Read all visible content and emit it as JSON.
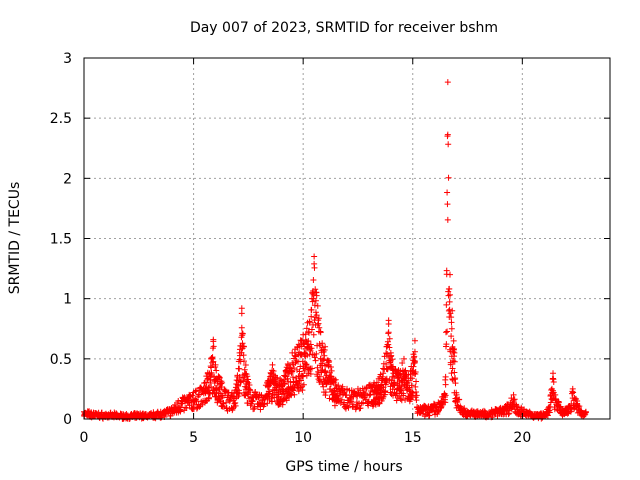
{
  "chart_data": {
    "type": "scatter",
    "title": "Day 007 of 2023, SRMTID for receiver bshm",
    "xlabel": "GPS time / hours",
    "ylabel": "SRMTID / TECUs",
    "xlim": [
      0,
      24
    ],
    "ylim": [
      0,
      3
    ],
    "xticks": [
      0,
      5,
      10,
      15,
      20
    ],
    "yticks": [
      0,
      0.5,
      1,
      1.5,
      2,
      2.5,
      3
    ],
    "xtick_labels": [
      "0",
      "5",
      "10",
      "15",
      "20"
    ],
    "ytick_labels": [
      "0",
      "0.5",
      "1",
      "1.5",
      "2",
      "2.5",
      "3"
    ],
    "grid": true,
    "marker": "+",
    "color": "#ff0000",
    "envelope": [
      [
        0.0,
        0.06
      ],
      [
        0.5,
        0.05
      ],
      [
        1.0,
        0.04
      ],
      [
        1.5,
        0.04
      ],
      [
        2.0,
        0.03
      ],
      [
        2.5,
        0.04
      ],
      [
        3.0,
        0.04
      ],
      [
        3.5,
        0.06
      ],
      [
        4.0,
        0.09
      ],
      [
        4.3,
        0.15
      ],
      [
        4.5,
        0.18
      ],
      [
        4.8,
        0.2
      ],
      [
        5.0,
        0.22
      ],
      [
        5.3,
        0.26
      ],
      [
        5.5,
        0.3
      ],
      [
        5.8,
        0.5
      ],
      [
        5.9,
        0.66
      ],
      [
        6.0,
        0.45
      ],
      [
        6.3,
        0.3
      ],
      [
        6.6,
        0.22
      ],
      [
        6.9,
        0.24
      ],
      [
        7.1,
        0.55
      ],
      [
        7.2,
        0.92
      ],
      [
        7.3,
        0.6
      ],
      [
        7.5,
        0.3
      ],
      [
        7.8,
        0.22
      ],
      [
        8.0,
        0.2
      ],
      [
        8.3,
        0.28
      ],
      [
        8.6,
        0.45
      ],
      [
        8.9,
        0.3
      ],
      [
        9.2,
        0.4
      ],
      [
        9.5,
        0.55
      ],
      [
        9.8,
        0.62
      ],
      [
        10.0,
        0.7
      ],
      [
        10.2,
        0.8
      ],
      [
        10.4,
        1.0
      ],
      [
        10.5,
        1.35
      ],
      [
        10.6,
        1.05
      ],
      [
        10.8,
        0.72
      ],
      [
        11.0,
        0.6
      ],
      [
        11.3,
        0.4
      ],
      [
        11.6,
        0.28
      ],
      [
        12.0,
        0.25
      ],
      [
        12.5,
        0.25
      ],
      [
        13.0,
        0.28
      ],
      [
        13.5,
        0.35
      ],
      [
        13.8,
        0.6
      ],
      [
        13.9,
        0.82
      ],
      [
        14.0,
        0.55
      ],
      [
        14.3,
        0.38
      ],
      [
        14.6,
        0.5
      ],
      [
        14.9,
        0.4
      ],
      [
        15.1,
        0.65
      ],
      [
        15.2,
        0.1
      ],
      [
        15.5,
        0.1
      ],
      [
        16.0,
        0.12
      ],
      [
        16.3,
        0.15
      ],
      [
        16.5,
        0.35
      ],
      [
        16.6,
        2.8
      ],
      [
        16.7,
        1.2
      ],
      [
        16.8,
        0.9
      ],
      [
        16.9,
        0.55
      ],
      [
        17.0,
        0.2
      ],
      [
        17.3,
        0.08
      ],
      [
        17.8,
        0.06
      ],
      [
        18.3,
        0.06
      ],
      [
        18.8,
        0.08
      ],
      [
        19.3,
        0.12
      ],
      [
        19.6,
        0.2
      ],
      [
        19.8,
        0.1
      ],
      [
        20.2,
        0.06
      ],
      [
        20.7,
        0.04
      ],
      [
        21.1,
        0.05
      ],
      [
        21.3,
        0.2
      ],
      [
        21.4,
        0.38
      ],
      [
        21.5,
        0.2
      ],
      [
        21.8,
        0.08
      ],
      [
        22.1,
        0.1
      ],
      [
        22.3,
        0.25
      ],
      [
        22.5,
        0.15
      ],
      [
        22.7,
        0.06
      ],
      [
        22.9,
        0.06
      ]
    ]
  }
}
